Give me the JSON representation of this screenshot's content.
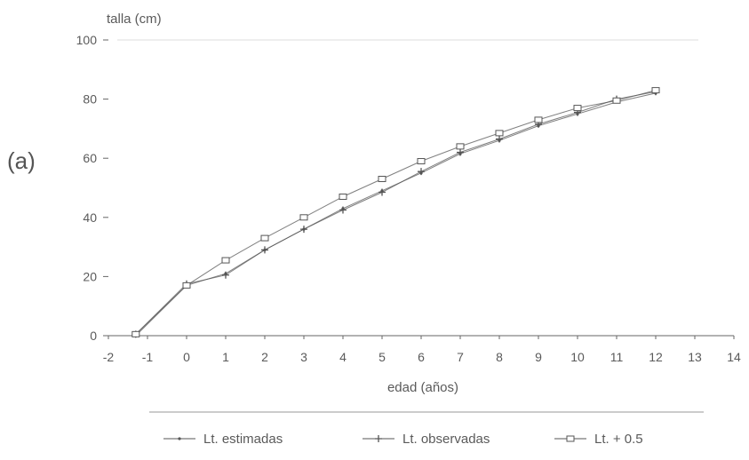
{
  "panel_label": "(a)",
  "chart_data": {
    "type": "line",
    "ylabel": "talla (cm)",
    "xlabel": "edad (años)",
    "xlim": [
      -2,
      14
    ],
    "ylim": [
      0,
      100
    ],
    "x_ticks": [
      "-2",
      "-1",
      "0",
      "1",
      "2",
      "3",
      "4",
      "5",
      "6",
      "7",
      "8",
      "9",
      "10",
      "11",
      "12",
      "13",
      "14"
    ],
    "y_ticks": [
      "0",
      "20",
      "40",
      "60",
      "80",
      "100"
    ],
    "grid": false,
    "legend_position": "bottom",
    "series": [
      {
        "name": "Lt. estimadas",
        "marker": "dot",
        "color": "#555555",
        "points": [
          [
            -1.3,
            0
          ],
          [
            0,
            17
          ],
          [
            1,
            21
          ],
          [
            2,
            29
          ],
          [
            3,
            36
          ],
          [
            4,
            43
          ],
          [
            5,
            49
          ],
          [
            6,
            55
          ],
          [
            7,
            61.5
          ],
          [
            8,
            66
          ],
          [
            9,
            71
          ],
          [
            10,
            75
          ],
          [
            11,
            79
          ],
          [
            12,
            82
          ]
        ]
      },
      {
        "name": "Lt. observadas",
        "marker": "plus",
        "color": "#555555",
        "points": [
          [
            -1.3,
            0.5
          ],
          [
            0,
            17.5
          ],
          [
            1,
            20.5
          ],
          [
            2,
            29
          ],
          [
            3,
            36
          ],
          [
            4,
            42.5
          ],
          [
            5,
            48.5
          ],
          [
            6,
            55.5
          ],
          [
            7,
            62
          ],
          [
            8,
            66.5
          ],
          [
            9,
            71.5
          ],
          [
            10,
            75.5
          ],
          [
            11,
            80
          ],
          [
            12,
            82.5
          ]
        ]
      },
      {
        "name": "Lt. + 0.5",
        "marker": "square",
        "color": "#555555",
        "points": [
          [
            -1.3,
            0.5
          ],
          [
            0,
            17
          ],
          [
            1,
            25.5
          ],
          [
            2,
            33
          ],
          [
            3,
            40
          ],
          [
            4,
            47
          ],
          [
            5,
            53
          ],
          [
            6,
            59
          ],
          [
            7,
            64
          ],
          [
            8,
            68.5
          ],
          [
            9,
            73
          ],
          [
            10,
            77
          ],
          [
            11,
            79.5
          ],
          [
            12,
            83
          ]
        ]
      }
    ]
  }
}
